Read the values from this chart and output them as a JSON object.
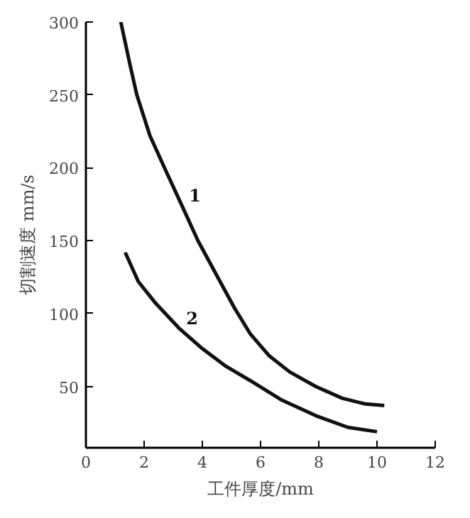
{
  "chart_data": {
    "type": "line",
    "xlabel": "工件厚度/mm",
    "ylabel": "切割速度 mm/s",
    "xlim": [
      0,
      12
    ],
    "ylim": [
      8,
      300
    ],
    "xticks": [
      0,
      2,
      4,
      6,
      8,
      10,
      12
    ],
    "yticks": [
      50,
      100,
      150,
      200,
      250,
      300
    ],
    "grid": false,
    "marker": "none",
    "line_style": "solid",
    "series": [
      {
        "name": "1",
        "color": "#111111",
        "x": [
          1.2,
          1.5,
          1.75,
          2.2,
          2.7,
          3.3,
          3.85,
          4.5,
          5.1,
          5.65,
          6.3,
          7.0,
          7.9,
          8.8,
          9.6,
          10.25
        ],
        "values": [
          300,
          272,
          250,
          222,
          200,
          174,
          150,
          126,
          104,
          86,
          71,
          60,
          50,
          42,
          38,
          37
        ]
      },
      {
        "name": "2",
        "color": "#111111",
        "x": [
          1.35,
          1.8,
          2.4,
          3.2,
          4.0,
          4.8,
          5.65,
          6.7,
          7.9,
          9.0,
          10.0
        ],
        "values": [
          142,
          122,
          107,
          90,
          76,
          64,
          54,
          41,
          30,
          22,
          19
        ]
      }
    ]
  }
}
